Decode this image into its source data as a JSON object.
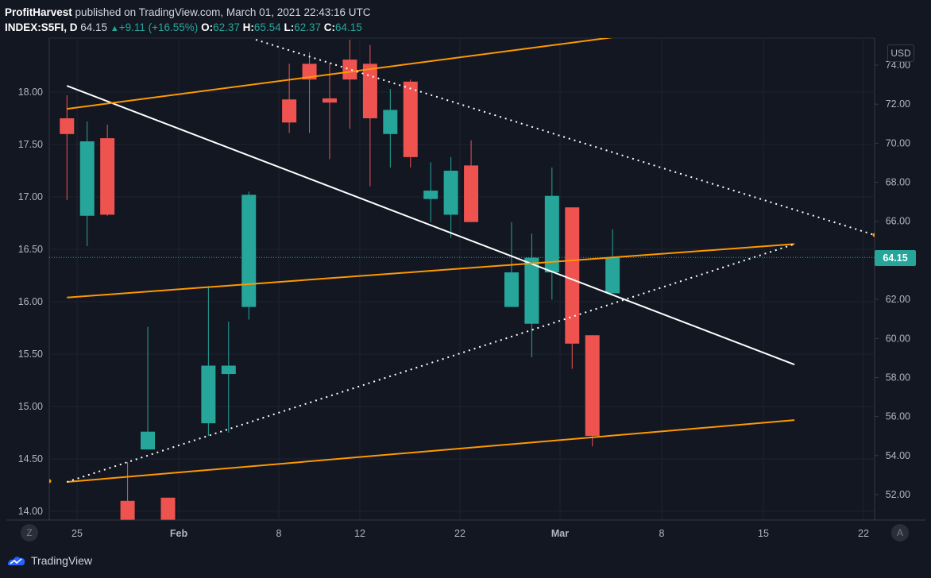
{
  "header": {
    "author": "ProfitHarvest",
    "published": "published on TradingView.com, March 01, 2021 22:43:16 UTC",
    "symbol": "INDEX:S5FI, D",
    "last": "64.15",
    "change": "+9.11 (+16.55%)",
    "open_label": "O:",
    "open": "62.37",
    "high_label": "H:",
    "high": "65.54",
    "low_label": "L:",
    "low": "62.37",
    "close_label": "C:",
    "close": "64.15"
  },
  "currency": "USD",
  "last_price_tag": "64.15",
  "buttons": {
    "zoom": "Z",
    "auto": "A"
  },
  "brand": {
    "name": "TradingView",
    "icon": "tradingview-logo-icon"
  },
  "colors": {
    "up": "#26a69a",
    "down": "#ef5350",
    "trend": "#ff9800",
    "white_line": "#ffffff",
    "background": "#131722"
  },
  "chart_data": {
    "type": "candlestick",
    "left_axis": {
      "ticks": [
        "18.00",
        "17.50",
        "17.00",
        "16.50",
        "16.00",
        "15.50",
        "15.00",
        "14.50",
        "14.00"
      ],
      "range": [
        13.92,
        18.52
      ]
    },
    "right_axis": {
      "ticks": [
        "74.00",
        "72.00",
        "70.00",
        "68.00",
        "66.00",
        "64.00",
        "62.00",
        "60.00",
        "58.00",
        "56.00",
        "54.00",
        "52.00"
      ],
      "range": [
        51.2,
        75.5
      ]
    },
    "x_axis": {
      "ticks": [
        "25",
        "Feb",
        "8",
        "12",
        "22",
        "Mar",
        "8",
        "15",
        "22"
      ]
    },
    "candles": [
      {
        "x": -0.5,
        "o": 17.75,
        "h": 17.97,
        "l": 16.97,
        "c": 17.6
      },
      {
        "x": 0.5,
        "o": 16.82,
        "h": 17.72,
        "l": 16.53,
        "c": 17.53
      },
      {
        "x": 1.5,
        "o": 17.56,
        "h": 17.69,
        "l": 16.82,
        "c": 16.83
      },
      {
        "x": 2.5,
        "o": 14.1,
        "h": 14.47,
        "l": 13.92,
        "c": 13.92
      },
      {
        "x": 3.5,
        "o": 14.59,
        "h": 15.76,
        "l": 14.59,
        "c": 14.76
      },
      {
        "x": 4.5,
        "o": 14.13,
        "h": 14.13,
        "l": 13.92,
        "c": 13.92
      },
      {
        "x": 6.5,
        "o": 14.84,
        "h": 16.15,
        "l": 14.72,
        "c": 15.39
      },
      {
        "x": 7.5,
        "o": 15.31,
        "h": 15.81,
        "l": 14.75,
        "c": 15.39
      },
      {
        "x": 8.5,
        "o": 15.95,
        "h": 17.05,
        "l": 15.83,
        "c": 17.02
      },
      {
        "x": 10.5,
        "o": 17.93,
        "h": 18.27,
        "l": 17.61,
        "c": 17.71
      },
      {
        "x": 11.5,
        "o": 18.27,
        "h": 18.38,
        "l": 17.61,
        "c": 18.12
      },
      {
        "x": 12.5,
        "o": 17.94,
        "h": 18.27,
        "l": 17.36,
        "c": 17.9
      },
      {
        "x": 13.5,
        "o": 18.31,
        "h": 18.5,
        "l": 17.65,
        "c": 18.12
      },
      {
        "x": 14.5,
        "o": 18.27,
        "h": 18.45,
        "l": 17.1,
        "c": 17.75
      },
      {
        "x": 15.5,
        "o": 17.6,
        "h": 18.03,
        "l": 17.28,
        "c": 17.83
      },
      {
        "x": 16.5,
        "o": 18.1,
        "h": 18.12,
        "l": 17.28,
        "c": 17.38
      },
      {
        "x": 17.5,
        "o": 16.98,
        "h": 17.33,
        "l": 16.76,
        "c": 17.06
      },
      {
        "x": 18.5,
        "o": 16.83,
        "h": 17.38,
        "l": 16.61,
        "c": 17.25
      },
      {
        "x": 19.5,
        "o": 17.3,
        "h": 17.54,
        "l": 16.76,
        "c": 16.76
      },
      {
        "x": 21.5,
        "o": 15.95,
        "h": 16.76,
        "l": 15.95,
        "c": 16.28
      },
      {
        "x": 22.5,
        "o": 15.79,
        "h": 16.65,
        "l": 15.47,
        "c": 16.42
      },
      {
        "x": 23.5,
        "o": 16.28,
        "h": 17.28,
        "l": 16.02,
        "c": 17.01
      },
      {
        "x": 24.5,
        "o": 16.9,
        "h": 16.9,
        "l": 15.36,
        "c": 15.6
      },
      {
        "x": 25.5,
        "o": 15.68,
        "h": 15.68,
        "l": 14.62,
        "c": 14.72
      },
      {
        "x": 26.5,
        "o": 16.08,
        "h": 16.69,
        "l": 16.08,
        "c": 16.42
      }
    ],
    "lines": [
      {
        "name": "",
        "style": "solid",
        "color": "#ffffff",
        "points": [
          [
            -0.5,
            18.06
          ],
          [
            35.5,
            15.4
          ]
        ]
      },
      {
        "name": "",
        "style": "solid",
        "color": "#ff9800",
        "points": [
          [
            -0.5,
            17.84
          ],
          [
            35.5,
            18.75
          ]
        ]
      },
      {
        "name": "",
        "style": "solid",
        "color": "#ff9800",
        "points": [
          [
            -0.5,
            16.04
          ],
          [
            35.5,
            16.55
          ]
        ]
      },
      {
        "name": "",
        "style": "solid",
        "color": "#ff9800",
        "points": [
          [
            -0.5,
            14.28
          ],
          [
            35.5,
            14.87
          ]
        ]
      },
      {
        "name": "",
        "style": "dotted",
        "color": "#ffffff",
        "points": [
          [
            -0.5,
            14.28
          ],
          [
            35.5,
            16.55
          ]
        ]
      }
    ],
    "last_price_level": 64.15,
    "grid": true
  }
}
